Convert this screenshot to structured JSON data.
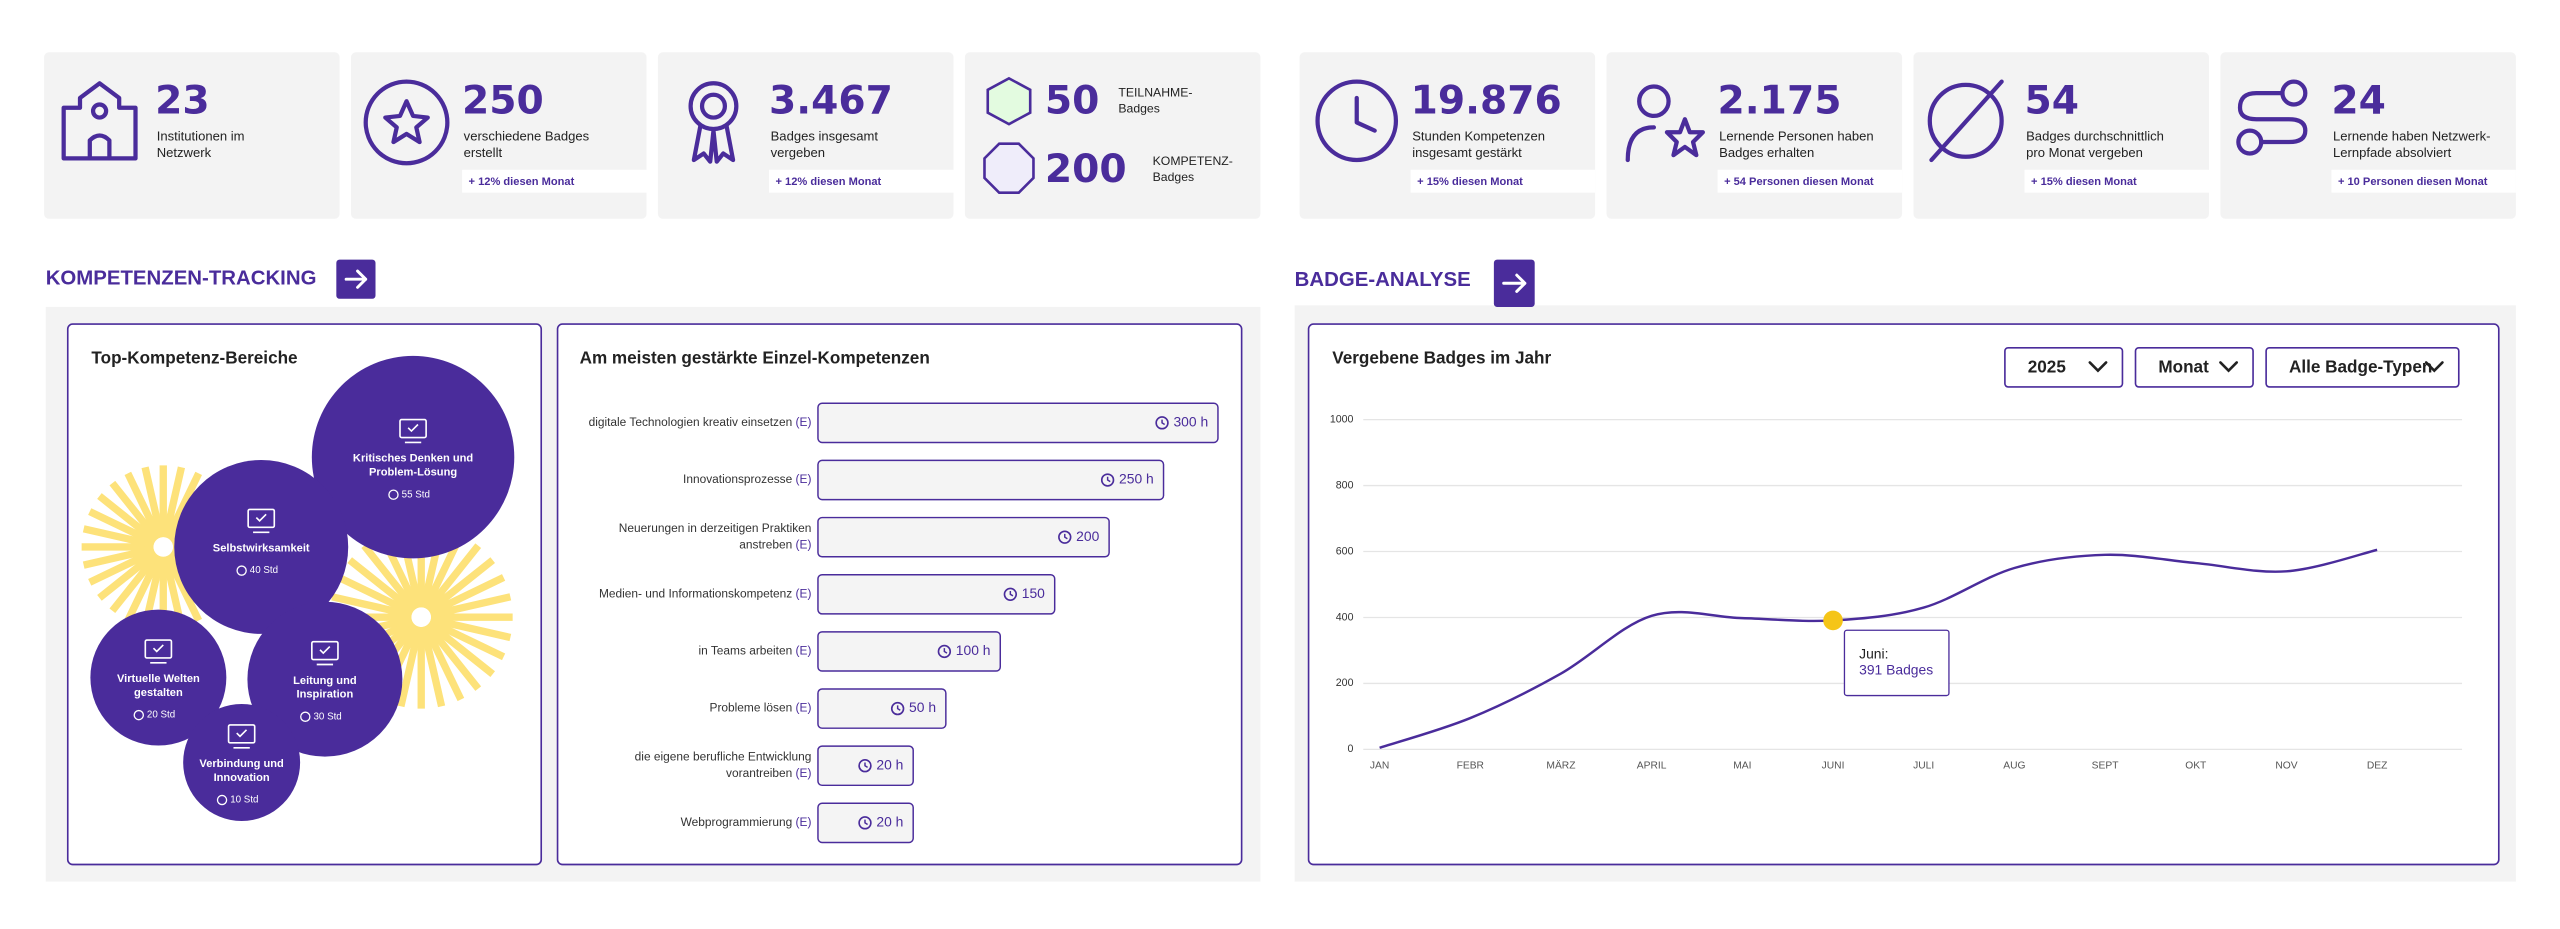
{
  "stats": [
    {
      "value": "23",
      "label": [
        "Institutionen im",
        "Netzwerk"
      ]
    },
    {
      "value": "250",
      "label": [
        "verschiedene Badges",
        "erstellt"
      ],
      "trend": "+ 12% diesen Monat"
    },
    {
      "value": "3.467",
      "label": [
        "Badges insgesamt",
        "vergeben"
      ],
      "trend": "+ 12% diesen Monat"
    },
    {
      "badge_types": [
        {
          "value": "50",
          "label": [
            "TEILNAHME-",
            "Badges"
          ]
        },
        {
          "value": "200",
          "label": [
            "KOMPETENZ-",
            "Badges"
          ]
        }
      ]
    },
    {
      "value": "19.876",
      "label": [
        "Stunden Kompetenzen",
        "insgesamt gestärkt"
      ],
      "trend": "+ 15% diesen Monat"
    },
    {
      "value": "2.175",
      "label": [
        "Lernende Personen haben",
        "Badges erhalten"
      ],
      "trend": "+ 54 Personen diesen Monat"
    },
    {
      "value": "54",
      "label": [
        "Badges durchschnittlich",
        "pro Monat vergeben"
      ],
      "trend": "+ 15% diesen Monat"
    },
    {
      "value": "24",
      "label": [
        "Lernende haben Netzwerk-",
        "Lernpfade absolviert"
      ],
      "trend": "+ 10 Personen diesen Monat"
    }
  ],
  "sections": [
    {
      "title": "KOMPETENZEN-TRACKING"
    },
    {
      "title": "BADGE-ANALYSE"
    }
  ],
  "chart_data": [
    {
      "type": "bubble",
      "title": "Top-Kompetenz-Bereiche",
      "categories": [
        [
          "Kritisches Denken und",
          "Problem-Lösung"
        ],
        [
          "Selbstwirksamkeit"
        ],
        [
          "Virtuelle Welten",
          "gestalten"
        ],
        [
          "Leitung und",
          "Inspiration"
        ],
        [
          "Verbindung und",
          "Innovation"
        ]
      ],
      "values": [
        55,
        40,
        20,
        30,
        10
      ],
      "value_labels": [
        "55 Std",
        "40 Std",
        "20 Std",
        "30 Std",
        "10 Std"
      ],
      "color": "#4a2c9b"
    },
    {
      "type": "hbar",
      "title": "Am meisten gestärkte Einzel-Kompetenzen",
      "categories": [
        [
          "digitale Technologien kreativ einsetzen"
        ],
        [
          "Innovationsprozesse"
        ],
        [
          "Neuerungen in derzeitigen Praktiken",
          "anstreben"
        ],
        [
          "Medien- und Informationskompetenz"
        ],
        [
          "in Teams arbeiten"
        ],
        [
          "Probleme lösen"
        ],
        [
          "die eigene berufliche Entwicklung",
          "vorantreiben"
        ],
        [
          "Webprogrammierung"
        ]
      ],
      "marker": "(E)",
      "values": [
        300,
        250,
        200,
        150,
        100,
        50,
        20,
        20
      ],
      "value_labels": [
        "300 h",
        "250 h",
        "200",
        "150",
        "100 h",
        "50 h",
        "20 h",
        "20 h"
      ],
      "color": "#4a2c9b"
    },
    {
      "type": "line",
      "title": "Vergebene Badges im Jahr",
      "filters": [
        "2025",
        "Monat",
        "Alle Badge-Typen"
      ],
      "categories": [
        "JAN",
        "FEBR",
        "MÄRZ",
        "APRIL",
        "MAI",
        "JUNI",
        "JULI",
        "AUG",
        "SEPT",
        "OKT",
        "NOV",
        "DEZ"
      ],
      "values": [
        5,
        95,
        230,
        405,
        398,
        391,
        430,
        550,
        590,
        565,
        540,
        605
      ],
      "value_labels": [
        null,
        null,
        null,
        null,
        null,
        "391 Badges",
        null,
        null,
        null,
        null,
        null,
        null
      ],
      "annotation_title": "Juni:",
      "ylim": [
        0,
        1000
      ],
      "yticks": [
        0,
        200,
        400,
        600,
        800,
        1000
      ],
      "grid": true,
      "color": "#4a2c9b",
      "highlight_color": "#f5c518"
    }
  ]
}
